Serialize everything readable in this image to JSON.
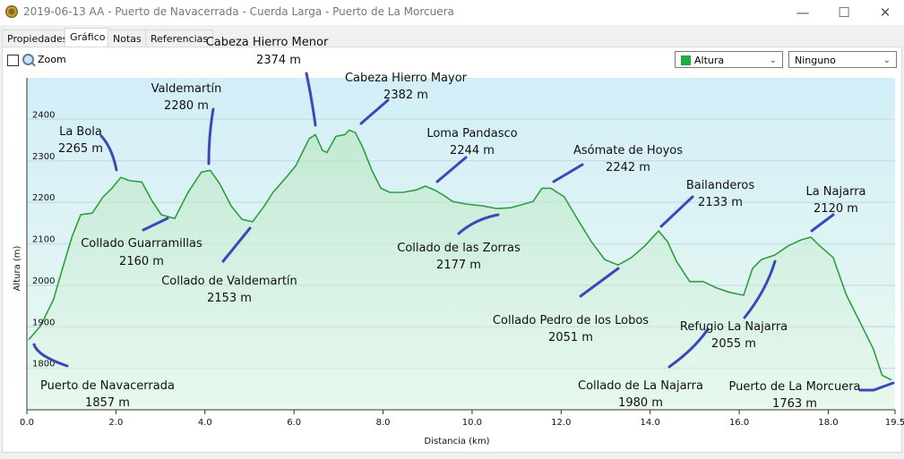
{
  "window": {
    "title": "2019-06-13 AA - Puerto de Navacerrada - Cuerda Larga - Puerto de La Morcuera",
    "minimize": "—",
    "maximize": "☐",
    "close": "✕"
  },
  "tabs": [
    {
      "label": "Propiedades"
    },
    {
      "label": "Gráfico"
    },
    {
      "label": "Notas"
    },
    {
      "label": "Referencias"
    }
  ],
  "toolbar": {
    "zoom_label": "Zoom",
    "zoom_checked": false,
    "series_select": "Altura",
    "series_color": "#22aa44",
    "second_select": "Ninguno"
  },
  "chart_data": {
    "type": "area",
    "xlabel": "Distancia  (km)",
    "ylabel": "Altura (m)",
    "xlim": [
      0,
      19.5
    ],
    "ylim": [
      1700,
      2500
    ],
    "xticks": [
      "0.0",
      "2.0",
      "4.0",
      "6.0",
      "8.0",
      "10.0",
      "12.0",
      "14.0",
      "16.0",
      "18.0",
      "19.5"
    ],
    "yticks": [
      "1800",
      "1900",
      "2000",
      "2100",
      "2200",
      "2300",
      "2400"
    ],
    "grid": true,
    "series": [
      {
        "name": "Altura",
        "color": "#2e9e3e",
        "x": [
          0.04,
          0.3,
          0.6,
          0.8,
          1.01,
          1.21,
          1.47,
          1.71,
          1.91,
          2.11,
          2.31,
          2.58,
          2.82,
          3.02,
          3.32,
          3.62,
          3.92,
          4.12,
          4.33,
          4.59,
          4.83,
          5.07,
          5.33,
          5.53,
          5.79,
          6.04,
          6.34,
          6.48,
          6.64,
          6.74,
          6.94,
          7.14,
          7.24,
          7.38,
          7.55,
          7.75,
          7.95,
          8.15,
          8.45,
          8.75,
          8.95,
          9.15,
          9.36,
          9.56,
          9.86,
          10.26,
          10.56,
          10.87,
          11.17,
          11.37,
          11.57,
          11.77,
          12.07,
          12.37,
          12.68,
          12.98,
          13.28,
          13.58,
          13.88,
          14.19,
          14.39,
          14.59,
          14.89,
          15.19,
          15.49,
          15.79,
          16.1,
          16.3,
          16.5,
          16.8,
          17.1,
          17.4,
          17.61,
          17.81,
          18.11,
          18.41,
          18.71,
          19.01,
          19.21,
          19.42
        ],
        "y": [
          1869,
          1901,
          1966,
          2041,
          2116,
          2170,
          2174,
          2213,
          2234,
          2260,
          2252,
          2249,
          2202,
          2170,
          2161,
          2224,
          2273,
          2277,
          2245,
          2191,
          2159,
          2153,
          2191,
          2224,
          2256,
          2288,
          2353,
          2363,
          2325,
          2320,
          2359,
          2363,
          2374,
          2368,
          2331,
          2277,
          2234,
          2224,
          2224,
          2230,
          2239,
          2230,
          2217,
          2202,
          2196,
          2191,
          2185,
          2187,
          2196,
          2202,
          2234,
          2234,
          2213,
          2159,
          2105,
          2062,
          2049,
          2067,
          2095,
          2131,
          2105,
          2058,
          2009,
          2009,
          1994,
          1983,
          1976,
          2041,
          2062,
          2073,
          2095,
          2110,
          2116,
          2095,
          2067,
          1976,
          1912,
          1847,
          1783,
          1772
        ]
      }
    ],
    "annotations": [
      {
        "name": "Cabeza Hierro Menor",
        "elev": "2374 m"
      },
      {
        "name": "Cabeza Hierro Mayor",
        "elev": "2382 m"
      },
      {
        "name": "Valdemartín",
        "elev": "2280 m"
      },
      {
        "name": "La Bola",
        "elev": "2265 m"
      },
      {
        "name": "Loma Pandasco",
        "elev": "2244 m"
      },
      {
        "name": "Asómate de Hoyos",
        "elev": "2242 m"
      },
      {
        "name": "Bailanderos",
        "elev": "2133 m"
      },
      {
        "name": "La Najarra",
        "elev": "2120 m"
      },
      {
        "name": "Collado Guarramillas",
        "elev": "2160 m"
      },
      {
        "name": "Collado de Valdemartín",
        "elev": "2153 m"
      },
      {
        "name": "Collado de las Zorras",
        "elev": "2177 m"
      },
      {
        "name": "Collado Pedro de los Lobos",
        "elev": "2051 m"
      },
      {
        "name": "Refugio La Najarra",
        "elev": "2055 m"
      },
      {
        "name": "Collado de La Najarra",
        "elev": "1980 m"
      },
      {
        "name": "Puerto de La Morcuera",
        "elev": "1763 m"
      },
      {
        "name": "Puerto de Navacerrada",
        "elev": "1857 m"
      }
    ]
  }
}
